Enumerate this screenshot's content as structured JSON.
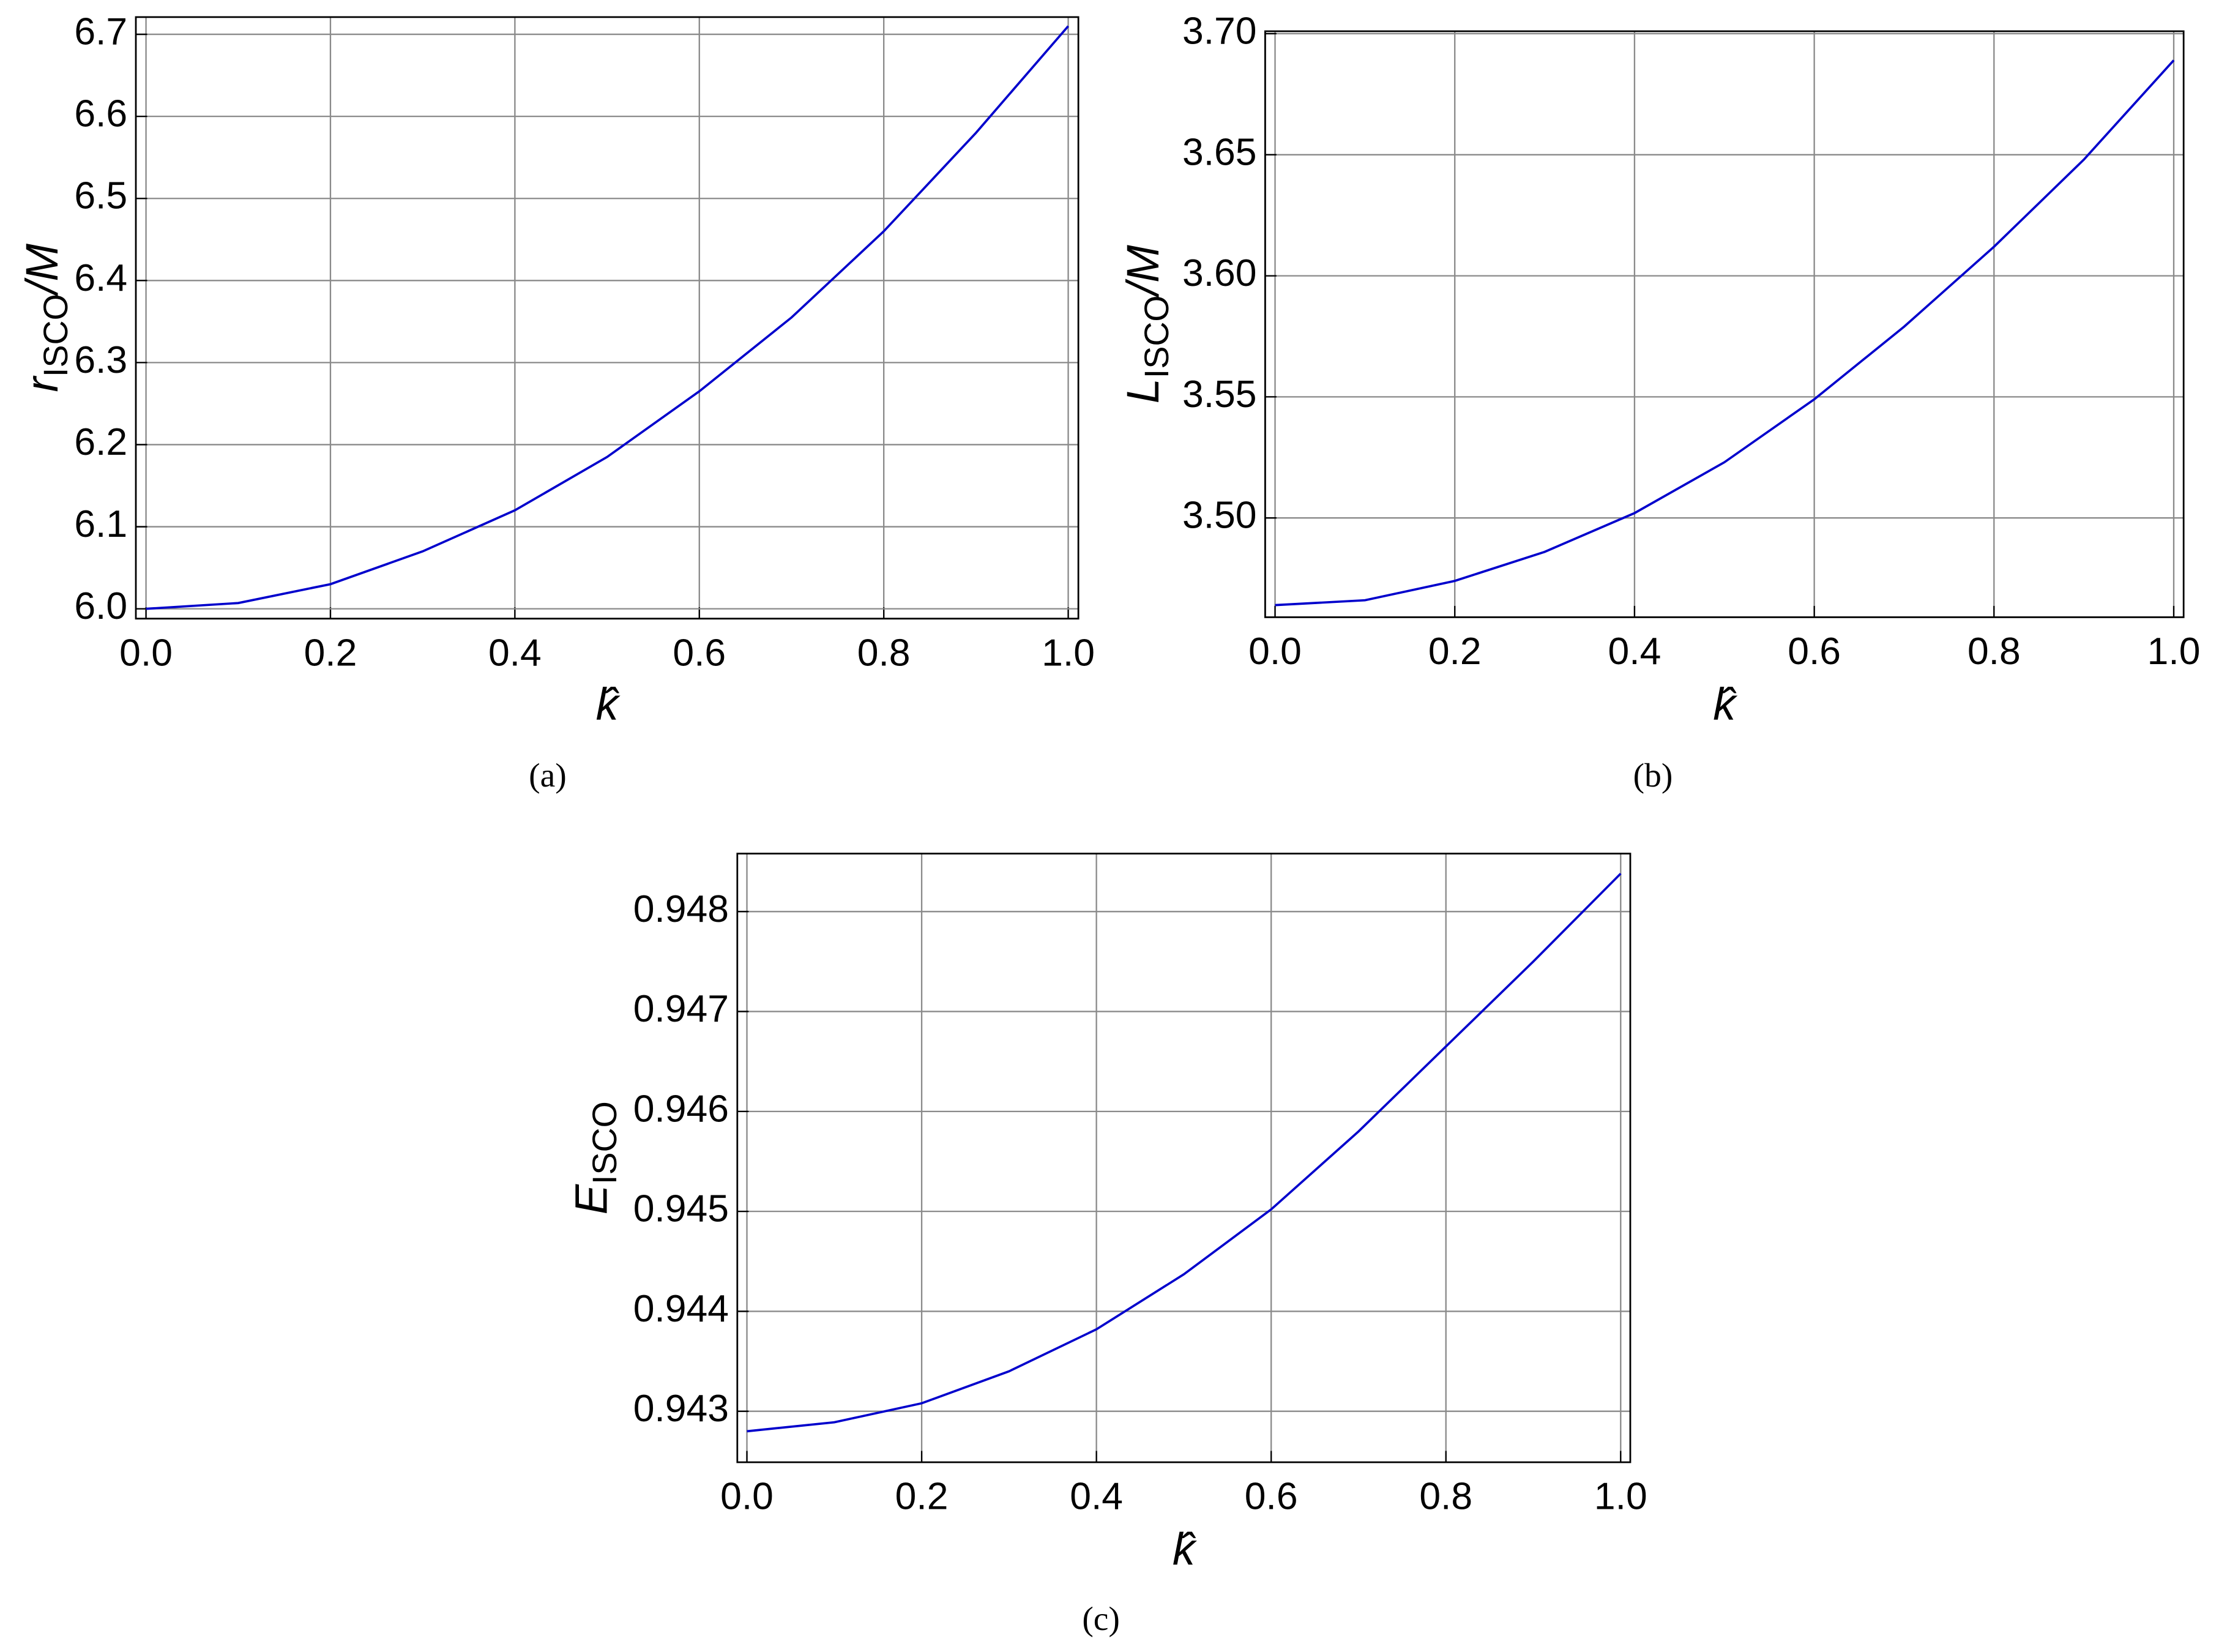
{
  "chart_data": [
    {
      "type": "line",
      "caption": "(a)",
      "xlabel": "k̂",
      "ylabel": {
        "main": "r",
        "sub": "ISCO",
        "suffix": "/M"
      },
      "x": [
        0,
        0.1,
        0.2,
        0.3,
        0.4,
        0.5,
        0.6,
        0.7,
        0.8,
        0.9,
        1.0
      ],
      "values": [
        6.0,
        6.007,
        6.03,
        6.07,
        6.12,
        6.185,
        6.265,
        6.355,
        6.46,
        6.58,
        6.71
      ],
      "color": "#0000cc",
      "xlim": [
        -0.011,
        1.011
      ],
      "ylim": [
        5.988,
        6.721
      ],
      "xticks": [
        {
          "value": 0,
          "label": "0.0"
        },
        0.2,
        0.4,
        0.6,
        0.8,
        {
          "value": 1,
          "label": "1.0"
        }
      ],
      "yticks": [
        {
          "value": 6,
          "label": "6.0"
        },
        6.1,
        6.2,
        6.3,
        6.4,
        6.5,
        6.6,
        6.7
      ],
      "grid": true
    },
    {
      "type": "line",
      "caption": "(b)",
      "xlabel": "k̂",
      "ylabel": {
        "main": "L",
        "sub": "ISCO",
        "suffix": "/M"
      },
      "x": [
        0,
        0.1,
        0.2,
        0.3,
        0.4,
        0.5,
        0.6,
        0.7,
        0.8,
        0.9,
        1.0
      ],
      "values": [
        3.464,
        3.466,
        3.474,
        3.486,
        3.502,
        3.523,
        3.549,
        3.579,
        3.612,
        3.648,
        3.689
      ],
      "color": "#0000cc",
      "xlim": [
        -0.011,
        1.011
      ],
      "ylim": [
        3.459,
        3.701
      ],
      "xticks": [
        {
          "value": 0,
          "label": "0.0"
        },
        0.2,
        0.4,
        0.6,
        0.8,
        {
          "value": 1,
          "label": "1.0"
        }
      ],
      "yticks": [
        {
          "value": 3.5,
          "label": "3.50"
        },
        3.55,
        {
          "value": 3.6,
          "label": "3.60"
        },
        3.65,
        {
          "value": 3.7,
          "label": "3.70"
        }
      ],
      "grid": true
    },
    {
      "type": "line",
      "caption": "(c)",
      "xlabel": "k̂",
      "ylabel": {
        "main": "E",
        "sub": "ISCO"
      },
      "x": [
        0,
        0.1,
        0.2,
        0.3,
        0.4,
        0.5,
        0.6,
        0.7,
        0.8,
        0.9,
        1.0
      ],
      "values": [
        0.9428,
        0.94289,
        0.94308,
        0.9434,
        0.94382,
        0.94437,
        0.94502,
        0.9458,
        0.94665,
        0.9475,
        0.94838
      ],
      "color": "#0000cc",
      "xlim": [
        -0.011,
        1.011
      ],
      "ylim": [
        0.94249,
        0.94858
      ],
      "xticks": [
        {
          "value": 0,
          "label": "0.0"
        },
        0.2,
        0.4,
        0.6,
        0.8,
        {
          "value": 1,
          "label": "1.0"
        }
      ],
      "yticks": [
        0.943,
        0.944,
        0.945,
        0.946,
        0.947,
        0.948
      ],
      "grid": true
    }
  ]
}
